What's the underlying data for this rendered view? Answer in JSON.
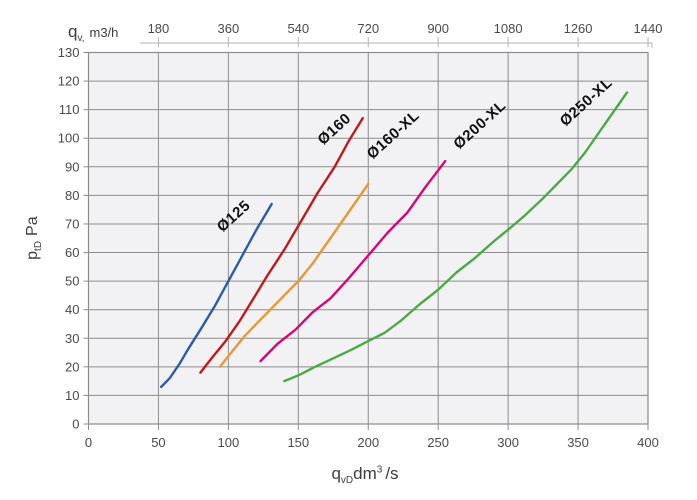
{
  "axis_titles": {
    "top": {
      "symbol": "q",
      "sub": "v,",
      "unit": "m3/h"
    },
    "left": {
      "symbol": "p",
      "sub": "tD",
      "unit": "Pa"
    },
    "bottom": {
      "symbol": "q",
      "sub": "vD",
      "base": "dm",
      "sup": "3",
      "tail": "/s"
    }
  },
  "chart_data": {
    "type": "line",
    "title": "",
    "xlabel": "q_vD, dm3/s",
    "xlabel_top": "q_v, m3/h",
    "ylabel": "p_tD, Pa",
    "grid": true,
    "x_bottom": {
      "range": [
        0,
        400
      ],
      "ticks": [
        0,
        50,
        100,
        150,
        200,
        250,
        300,
        350,
        400
      ]
    },
    "x_top": {
      "range": [
        0,
        1440
      ],
      "ticks": [
        180,
        360,
        540,
        720,
        900,
        1080,
        1260,
        1440
      ],
      "factor_to_bottom": 3.6
    },
    "y": {
      "range": [
        0,
        130
      ],
      "ticks": [
        0,
        10,
        20,
        30,
        40,
        50,
        60,
        70,
        80,
        90,
        100,
        110,
        120,
        130
      ]
    },
    "colors": {
      "grid": "#8d8d8d",
      "plot_bg": "#f2f2f4",
      "border": "#8c8c8c",
      "tick_text": "#4a4a4a",
      "top_axis_line": "#b3b3b3",
      "curve_label_text": "#111111"
    },
    "series": [
      {
        "name": "Ø125",
        "color": "#2a5caa",
        "points": [
          [
            52,
            13
          ],
          [
            58,
            16
          ],
          [
            65,
            21
          ],
          [
            71,
            26
          ],
          [
            80,
            33
          ],
          [
            90,
            41
          ],
          [
            100,
            50
          ],
          [
            110,
            59
          ],
          [
            120,
            68
          ],
          [
            131,
            77
          ]
        ]
      },
      {
        "name": "Ø160",
        "color": "#c01a1d",
        "points": [
          [
            80,
            18
          ],
          [
            88,
            23
          ],
          [
            98,
            29
          ],
          [
            108,
            36
          ],
          [
            118,
            44
          ],
          [
            128,
            52
          ],
          [
            140,
            61
          ],
          [
            152,
            71
          ],
          [
            164,
            81
          ],
          [
            176,
            90
          ],
          [
            186,
            99
          ],
          [
            196,
            107
          ]
        ]
      },
      {
        "name": "Ø160-XL",
        "color": "#ea9735",
        "points": [
          [
            94,
            20
          ],
          [
            102,
            25
          ],
          [
            112,
            31
          ],
          [
            122,
            36
          ],
          [
            132,
            41
          ],
          [
            142,
            46
          ],
          [
            150,
            50
          ],
          [
            160,
            56
          ],
          [
            170,
            63
          ],
          [
            180,
            70
          ],
          [
            190,
            77
          ],
          [
            200,
            84
          ]
        ]
      },
      {
        "name": "Ø200-XL",
        "color": "#d3077a",
        "points": [
          [
            123,
            22
          ],
          [
            135,
            28
          ],
          [
            148,
            33
          ],
          [
            160,
            39
          ],
          [
            173,
            44
          ],
          [
            186,
            51
          ],
          [
            200,
            59
          ],
          [
            214,
            67
          ],
          [
            228,
            74
          ],
          [
            241,
            83
          ],
          [
            255,
            92
          ]
        ]
      },
      {
        "name": "Ø250-XL",
        "color": "#4aaa44",
        "points": [
          [
            140,
            15
          ],
          [
            150,
            17
          ],
          [
            162,
            20
          ],
          [
            175,
            23
          ],
          [
            188,
            26
          ],
          [
            200,
            29
          ],
          [
            212,
            32
          ],
          [
            223,
            36
          ],
          [
            237,
            42
          ],
          [
            250,
            47
          ],
          [
            263,
            53
          ],
          [
            276,
            58
          ],
          [
            290,
            64
          ],
          [
            300,
            68
          ],
          [
            312,
            73
          ],
          [
            325,
            79
          ],
          [
            335,
            84
          ],
          [
            345,
            89
          ],
          [
            355,
            95
          ],
          [
            365,
            102
          ],
          [
            375,
            109
          ],
          [
            385,
            116
          ]
        ]
      }
    ],
    "curve_labels": [
      {
        "text": "Ø125",
        "x": 106,
        "y": 71.5,
        "rotation": -42
      },
      {
        "text": "Ø160",
        "x": 178,
        "y": 102,
        "rotation": -42
      },
      {
        "text": "Ø160-XL",
        "x": 220,
        "y": 100,
        "rotation": -42
      },
      {
        "text": "Ø200-XL",
        "x": 282,
        "y": 103.5,
        "rotation": -42
      },
      {
        "text": "Ø250-XL",
        "x": 358,
        "y": 111.5,
        "rotation": -42
      }
    ]
  }
}
